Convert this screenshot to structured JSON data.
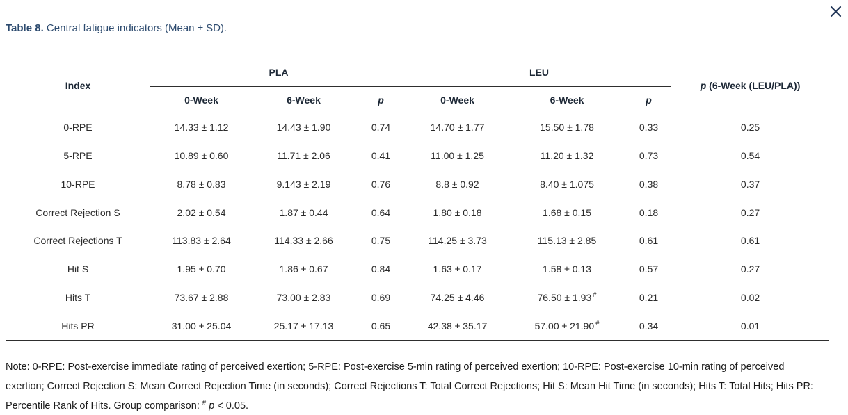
{
  "colors": {
    "accent_navy": "#2c4a6e",
    "rule": "#2e2e2e",
    "body_text": "#2a2a2a",
    "close_icon": "#24395a"
  },
  "icons": {
    "close": "✕"
  },
  "caption": {
    "label": "Table 8.",
    "text": "Central fatigue indicators (Mean ± SD)."
  },
  "table": {
    "columns": {
      "index": "Index",
      "group_pla": "PLA",
      "group_leu": "LEU",
      "p_combined_italic": "p",
      "p_combined_rest": " (6-Week (LEU/PLA))",
      "subheaders": [
        "0-Week",
        "6-Week",
        "p",
        "0-Week",
        "6-Week",
        "p"
      ]
    },
    "rows": [
      {
        "label": "0-RPE",
        "cells": [
          "14.33 ± 1.12",
          "14.43 ± 1.90",
          "0.74",
          "14.70 ± 1.77",
          "15.50 ± 1.78",
          "0.33",
          "0.25"
        ]
      },
      {
        "label": "5-RPE",
        "cells": [
          "10.89 ± 0.60",
          "11.71 ± 2.06",
          "0.41",
          "11.00 ± 1.25",
          "11.20 ± 1.32",
          "0.73",
          "0.54"
        ]
      },
      {
        "label": "10-RPE",
        "cells": [
          "8.78 ± 0.83",
          "9.143 ± 2.19",
          "0.76",
          "8.8 ± 0.92",
          "8.40 ± 1.075",
          "0.38",
          "0.37"
        ]
      },
      {
        "label": "Correct Rejection S",
        "cells": [
          "2.02 ± 0.54",
          "1.87 ± 0.44",
          "0.64",
          "1.80 ± 0.18",
          "1.68 ± 0.15",
          "0.18",
          "0.27"
        ]
      },
      {
        "label": "Correct Rejections T",
        "cells": [
          "113.83 ± 2.64",
          "114.33 ± 2.66",
          "0.75",
          "114.25 ± 3.73",
          "115.13 ± 2.85",
          "0.61",
          "0.61"
        ]
      },
      {
        "label": "Hit S",
        "cells": [
          "1.95 ± 0.70",
          "1.86 ± 0.67",
          "0.84",
          "1.63 ± 0.17",
          "1.58 ± 0.13",
          "0.57",
          "0.27"
        ]
      },
      {
        "label": "Hits T",
        "cells": [
          "73.67 ± 2.88",
          "73.00 ± 2.83",
          "0.69",
          "74.25 ± 4.46",
          {
            "v": "76.50 ± 1.93",
            "sup": "#"
          },
          "0.21",
          "0.02"
        ]
      },
      {
        "label": "Hits PR",
        "cells": [
          "31.00 ± 25.04",
          "25.17 ± 17.13",
          "0.65",
          "42.38 ± 35.17",
          {
            "v": "57.00 ± 21.90",
            "sup": "#"
          },
          "0.34",
          "0.01"
        ]
      }
    ]
  },
  "footnote": {
    "body": "Note: 0-RPE: Post-exercise immediate rating of perceived exertion; 5-RPE: Post-exercise 5-min rating of perceived exertion; 10-RPE: Post-exercise 10-min rating of perceived exertion; Correct Rejection S: Mean Correct Rejection Time (in seconds); Correct Rejections T: Total Correct Rejections; Hit S: Mean Hit Time (in seconds); Hits T: Total Hits; Hits PR: Percentile Rank of Hits. Group comparison:",
    "marker": "#",
    "p_label": "p",
    "tail": " < 0.05."
  }
}
